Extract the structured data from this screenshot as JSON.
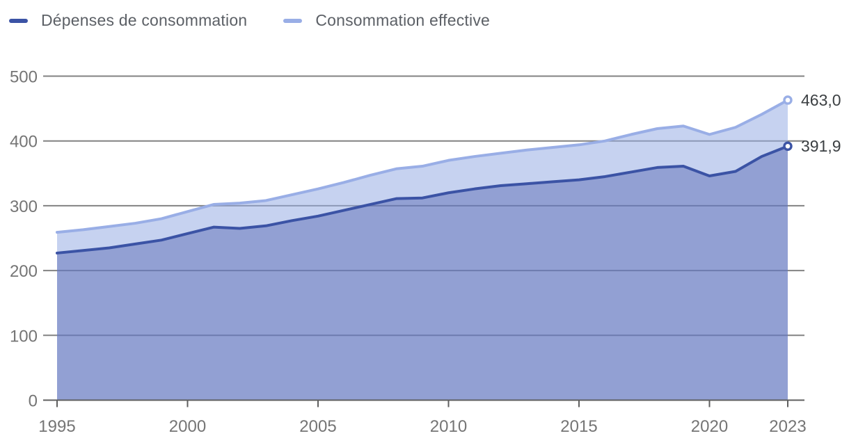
{
  "legend": {
    "items": [
      {
        "label": "Dépenses de consommation",
        "color": "#3b53a5"
      },
      {
        "label": "Consommation effective",
        "color": "#99aee6"
      }
    ]
  },
  "end_labels": {
    "depenses": "391,9",
    "effective": "463,0"
  },
  "chart_data": {
    "type": "area",
    "title": "",
    "xlabel": "",
    "ylabel": "",
    "x": [
      1995,
      1996,
      1997,
      1998,
      1999,
      2000,
      2001,
      2002,
      2003,
      2004,
      2005,
      2006,
      2007,
      2008,
      2009,
      2010,
      2011,
      2012,
      2013,
      2014,
      2015,
      2016,
      2017,
      2018,
      2019,
      2020,
      2021,
      2022,
      2023
    ],
    "series": [
      {
        "id": "depenses",
        "name": "Dépenses de consommation",
        "values": [
          227,
          231,
          235,
          241,
          247,
          257,
          267,
          265,
          269,
          277,
          284,
          293,
          302,
          311,
          312,
          320,
          326,
          331,
          334,
          337,
          340,
          345,
          352,
          359,
          361,
          346,
          353,
          376,
          391.9
        ],
        "line_color": "#3b53a5",
        "fill_color": "rgba(55,72,160,0.36)",
        "end_value_label": "391,9"
      },
      {
        "id": "effective",
        "name": "Consommation effective",
        "values": [
          259,
          263,
          268,
          273,
          280,
          291,
          302,
          304,
          308,
          317,
          326,
          336,
          347,
          357,
          361,
          370,
          376,
          381,
          386,
          390,
          394,
          400,
          410,
          419,
          423,
          410,
          421,
          441,
          463.0
        ],
        "line_color": "#99aee6",
        "fill_color": "rgba(150,171,228,0.54)",
        "end_value_label": "463,0"
      }
    ],
    "x_ticks": [
      1995,
      2000,
      2005,
      2010,
      2015,
      2020,
      2023
    ],
    "y_ticks": [
      0,
      100,
      200,
      300,
      400,
      500
    ],
    "xlim": [
      1995,
      2023
    ],
    "ylim": [
      0,
      500
    ],
    "grid": true,
    "legend_position": "top-left"
  }
}
